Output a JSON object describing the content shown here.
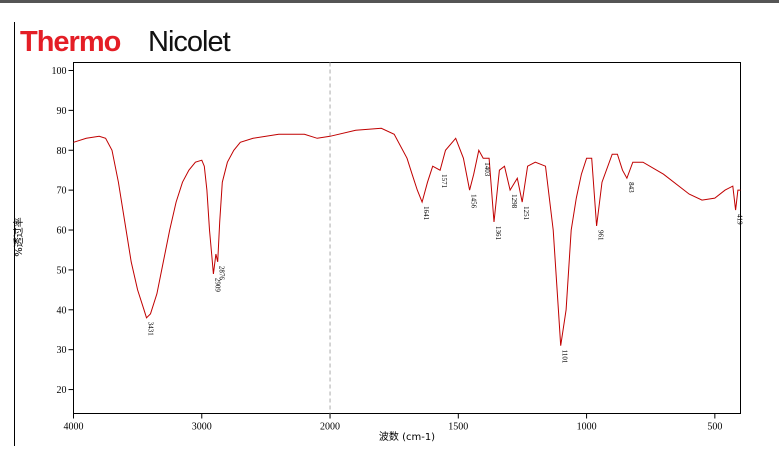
{
  "header": {
    "brand": "Thermo",
    "product": "Nicolet"
  },
  "chart_data": {
    "type": "line",
    "x_label": "波数 (cm-1)",
    "y_label": "%透过率",
    "color": "#c00000",
    "xlim": [
      4000,
      400
    ],
    "x_break": 2000,
    "ylim": [
      14,
      102
    ],
    "xticks": [
      4000,
      3000,
      2000,
      1500,
      1000,
      500
    ],
    "yticks": [
      20,
      30,
      40,
      50,
      60,
      70,
      80,
      90,
      100
    ],
    "x": [
      4000,
      3900,
      3800,
      3750,
      3700,
      3650,
      3600,
      3550,
      3500,
      3450,
      3431,
      3400,
      3350,
      3300,
      3250,
      3200,
      3150,
      3100,
      3050,
      3000,
      2980,
      2960,
      2940,
      2920,
      2909,
      2890,
      2876,
      2860,
      2840,
      2800,
      2750,
      2700,
      2600,
      2400,
      2200,
      2100,
      2000,
      1900,
      1800,
      1750,
      1700,
      1680,
      1660,
      1641,
      1620,
      1600,
      1571,
      1550,
      1510,
      1480,
      1456,
      1440,
      1420,
      1403,
      1380,
      1361,
      1340,
      1320,
      1298,
      1270,
      1251,
      1230,
      1200,
      1160,
      1130,
      1110,
      1101,
      1080,
      1060,
      1040,
      1020,
      1000,
      980,
      961,
      940,
      900,
      880,
      860,
      843,
      820,
      780,
      700,
      600,
      550,
      500,
      460,
      430,
      419,
      410,
      400
    ],
    "values": [
      82,
      83,
      83.5,
      83,
      80,
      72,
      62,
      52,
      45,
      40,
      38,
      39,
      44,
      52,
      60,
      67,
      72,
      75,
      77,
      77.5,
      76,
      70,
      60,
      53,
      49,
      54,
      52,
      62,
      72,
      77,
      80,
      82,
      83,
      84,
      84,
      83,
      83.5,
      85,
      85.5,
      84,
      78,
      74,
      70,
      67,
      72,
      76,
      75,
      80,
      83,
      78,
      70,
      74,
      80,
      78,
      78,
      62,
      75,
      76,
      70,
      73,
      67,
      76,
      77,
      76,
      60,
      40,
      31,
      40,
      60,
      68,
      74,
      78,
      78,
      61,
      72,
      79,
      79,
      75,
      73,
      77,
      77,
      74,
      69,
      67.5,
      68,
      70,
      71,
      65,
      70,
      70
    ],
    "peak_labels": [
      3431,
      2909,
      2876,
      1641,
      1571,
      1456,
      1403,
      1361,
      1298,
      1251,
      1101,
      961,
      843,
      419
    ]
  }
}
